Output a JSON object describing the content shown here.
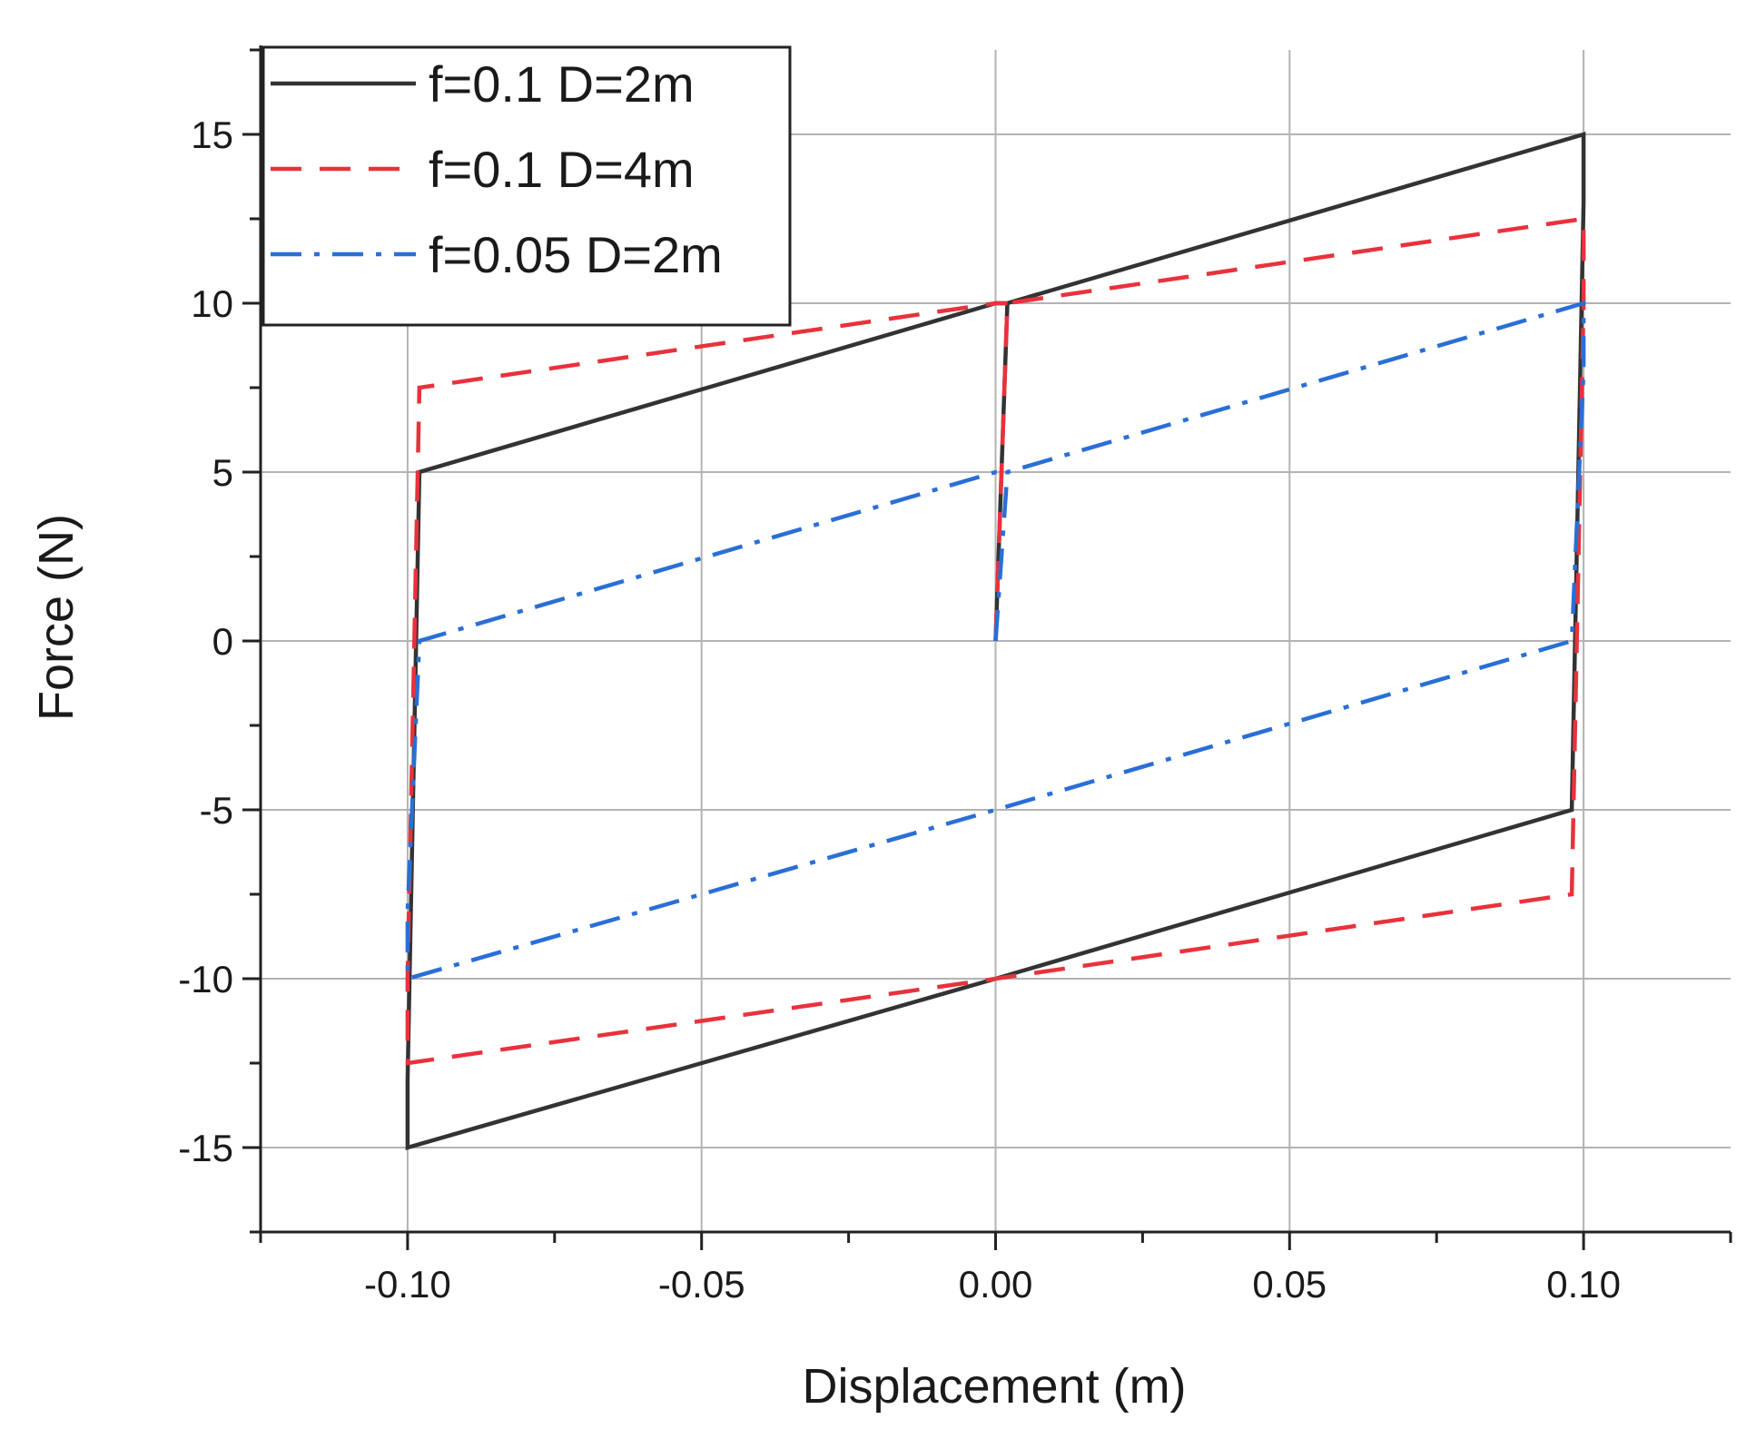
{
  "chart_data": {
    "type": "line",
    "xlabel": "Displacement (m)",
    "ylabel": "Force (N)",
    "xlim": [
      -0.125,
      0.125
    ],
    "ylim": [
      -17.5,
      17.5
    ],
    "x_ticks": [
      "-0.10",
      "-0.05",
      "0.00",
      "0.05",
      "0.10"
    ],
    "x_tick_values": [
      -0.1,
      -0.05,
      0,
      0.05,
      0.1
    ],
    "y_ticks": [
      "15",
      "10",
      "5",
      "0",
      "-5",
      "-10",
      "-15"
    ],
    "y_tick_values": [
      15,
      10,
      5,
      0,
      -5,
      -10,
      -15
    ],
    "grid": true,
    "legend_position": "top-left",
    "series": [
      {
        "name": "f=0.1 D=2m",
        "color": "#333333",
        "dash": "solid",
        "points": [
          [
            0,
            0
          ],
          [
            0.002,
            10
          ],
          [
            0.1,
            15
          ],
          [
            0.1,
            13
          ],
          [
            0.098,
            -5
          ],
          [
            0,
            -10
          ],
          [
            -0.1,
            -15
          ],
          [
            -0.1,
            -13
          ],
          [
            -0.098,
            5
          ],
          [
            0,
            10
          ],
          [
            0.002,
            10
          ]
        ]
      },
      {
        "name": "f=0.1 D=4m",
        "color": "#e8323c",
        "dash": "dashed",
        "points": [
          [
            0,
            0
          ],
          [
            0.002,
            10
          ],
          [
            0.1,
            12.5
          ],
          [
            0.1,
            10
          ],
          [
            0.098,
            -7.5
          ],
          [
            0,
            -10
          ],
          [
            -0.1,
            -12.5
          ],
          [
            -0.1,
            -10
          ],
          [
            -0.098,
            7.5
          ],
          [
            0,
            10
          ],
          [
            0.002,
            10
          ]
        ]
      },
      {
        "name": "f=0.05 D=2m",
        "color": "#2a6fd6",
        "dash": "dashdot",
        "points": [
          [
            0,
            0
          ],
          [
            0.002,
            5
          ],
          [
            0.1,
            10
          ],
          [
            0.1,
            8
          ],
          [
            0.098,
            0
          ],
          [
            0,
            -5
          ],
          [
            -0.1,
            -10
          ],
          [
            -0.1,
            -8
          ],
          [
            -0.098,
            0
          ],
          [
            0,
            5
          ],
          [
            0.002,
            5
          ]
        ]
      }
    ]
  }
}
